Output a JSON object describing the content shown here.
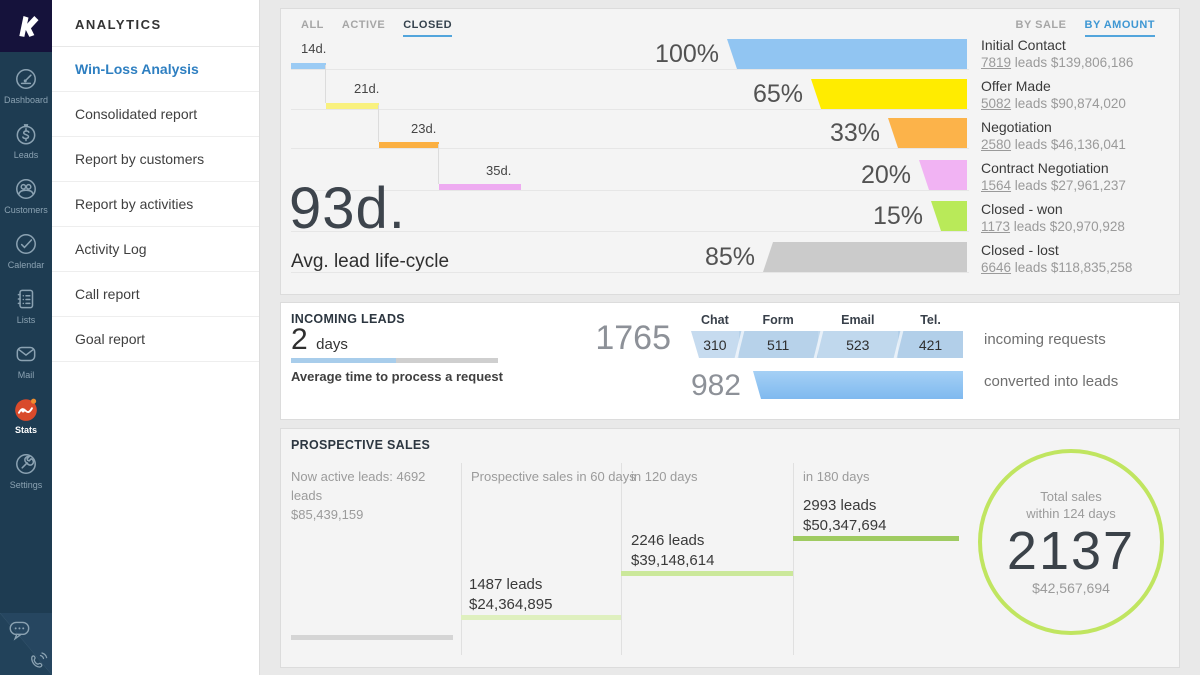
{
  "colors": {
    "rail_bg": "#1e3c52",
    "logo_bg": "#15123b",
    "accent_blue": "#52a5dc",
    "menu_active": "#2e7fc1",
    "stats_active_icon": "#d94a2b",
    "circle_green": "#c0e560"
  },
  "rail": {
    "logo_icon": "kommo-k-logo",
    "items": [
      {
        "label": "Dashboard",
        "icon": "gauge-icon"
      },
      {
        "label": "Leads",
        "icon": "dollar-circle-icon"
      },
      {
        "label": "Customers",
        "icon": "people-icon"
      },
      {
        "label": "Calendar",
        "icon": "check-circle-icon"
      },
      {
        "label": "Lists",
        "icon": "clipboard-icon"
      },
      {
        "label": "Mail",
        "icon": "envelope-icon"
      },
      {
        "label": "Stats",
        "icon": "line-chart-icon",
        "active": true
      },
      {
        "label": "Settings",
        "icon": "wrench-icon"
      }
    ],
    "bottom_icons": [
      "chat-bubble-icon",
      "phone-icon"
    ]
  },
  "menu": {
    "header": "ANALYTICS",
    "items": [
      {
        "label": "Win-Loss Analysis",
        "active": true
      },
      {
        "label": "Consolidated report"
      },
      {
        "label": "Report by customers"
      },
      {
        "label": "Report by activities"
      },
      {
        "label": "Activity Log"
      },
      {
        "label": "Call report"
      },
      {
        "label": "Goal report"
      }
    ]
  },
  "toolbar": {
    "left": [
      "ALL",
      "ACTIVE",
      "CLOSED"
    ],
    "active_left": "CLOSED",
    "right": [
      "BY SALE",
      "BY AMOUNT"
    ],
    "active_right": "BY AMOUNT"
  },
  "funnel": {
    "avg_days": "93d.",
    "avg_caption": "Avg. lead life-cycle",
    "steps": [
      {
        "label": "14d.",
        "color": "#9bcbf4"
      },
      {
        "label": "21d.",
        "color": "#f9f17e"
      },
      {
        "label": "23d.",
        "color": "#fbb042"
      },
      {
        "label": "35d.",
        "color": "#eeabf1"
      }
    ],
    "rows": [
      {
        "pct": "100%",
        "value": 100,
        "color": "#91c5f2",
        "reverse": false,
        "stage": "Initial Contact",
        "leads": "7819",
        "detail": " leads $139,806,186"
      },
      {
        "pct": "65%",
        "value": 65,
        "color": "#ffec00",
        "reverse": false,
        "stage": "Offer Made",
        "leads": "5082",
        "detail": " leads $90,874,020"
      },
      {
        "pct": "33%",
        "value": 33,
        "color": "#fcb34a",
        "reverse": false,
        "stage": "Negotiation",
        "leads": "2580",
        "detail": " leads $46,136,041"
      },
      {
        "pct": "20%",
        "value": 20,
        "color": "#f1b3f3",
        "reverse": false,
        "stage": "Contract Negotiation",
        "leads": "1564",
        "detail": " leads $27,961,237"
      },
      {
        "pct": "15%",
        "value": 15,
        "color": "#b9ea59",
        "reverse": false,
        "stage": "Closed - won",
        "leads": "1173",
        "detail": " leads $20,970,928"
      },
      {
        "pct": "85%",
        "value": 85,
        "color": "#cbcbcb",
        "reverse": true,
        "stage": "Closed - lost",
        "leads": "6646",
        "detail": " leads $118,835,258"
      }
    ]
  },
  "incoming": {
    "title": "INCOMING LEADS",
    "days_value": "2",
    "days_unit": "days",
    "progress_caption": "Average time to process a request",
    "requests_total": "1765",
    "channels": [
      {
        "label": "Chat",
        "value": 310,
        "color": "#c6dbef"
      },
      {
        "label": "Form",
        "value": 511,
        "color": "#b7d2ea"
      },
      {
        "label": "Email",
        "value": 523,
        "color": "#c0d8ed"
      },
      {
        "label": "Tel.",
        "value": 421,
        "color": "#b2cfe9"
      }
    ],
    "requests_label": "incoming requests",
    "converted_total": "982",
    "converted_label": "converted into leads"
  },
  "prospective": {
    "title": "PROSPECTIVE SALES",
    "columns": [
      {
        "header": "Now active leads: 4692 leads",
        "header2": "$85,439,159",
        "bar_color": "#d5d5d5"
      },
      {
        "header": "Prospective sales in 60 days",
        "leads": "1487 leads",
        "amount": "$24,364,895",
        "bar_color": "#dff0bf"
      },
      {
        "header": "in 120 days",
        "leads": "2246 leads",
        "amount": "$39,148,614",
        "bar_color": "#cbe89a"
      },
      {
        "header": "in 180 days",
        "leads": "2993 leads",
        "amount": "$50,347,694",
        "bar_color": "#9fcb61"
      }
    ],
    "total": {
      "caption1": "Total sales",
      "caption2": "within 124 days",
      "value": "2137",
      "amount": "$42,567,694"
    }
  }
}
